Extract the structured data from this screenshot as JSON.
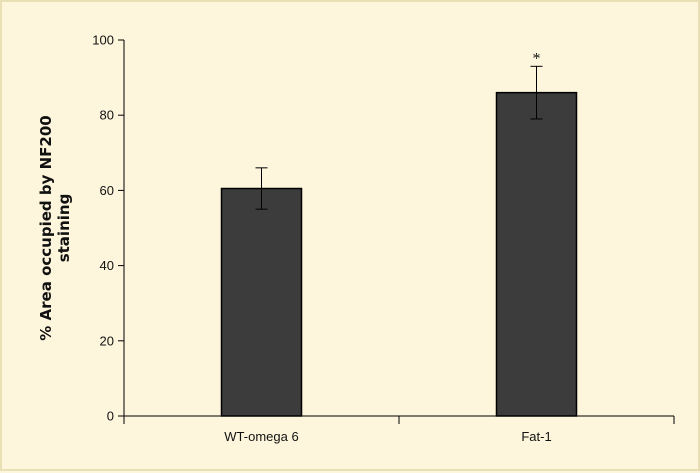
{
  "chart_data": {
    "type": "bar",
    "categories": [
      "WT-omega 6",
      "Fat-1"
    ],
    "values": [
      60.5,
      86
    ],
    "errors": [
      5.5,
      7
    ],
    "annotations": [
      "",
      "*"
    ],
    "ylabel_lines": [
      "% Area occupied by NF200",
      "staining"
    ],
    "ylim": [
      0,
      100
    ],
    "yticks": [
      0,
      20,
      40,
      60,
      80,
      100
    ],
    "colors": {
      "bar_fill": "#3c3c3c",
      "bar_edge": "#000000",
      "background": "#fdf6dc"
    }
  }
}
